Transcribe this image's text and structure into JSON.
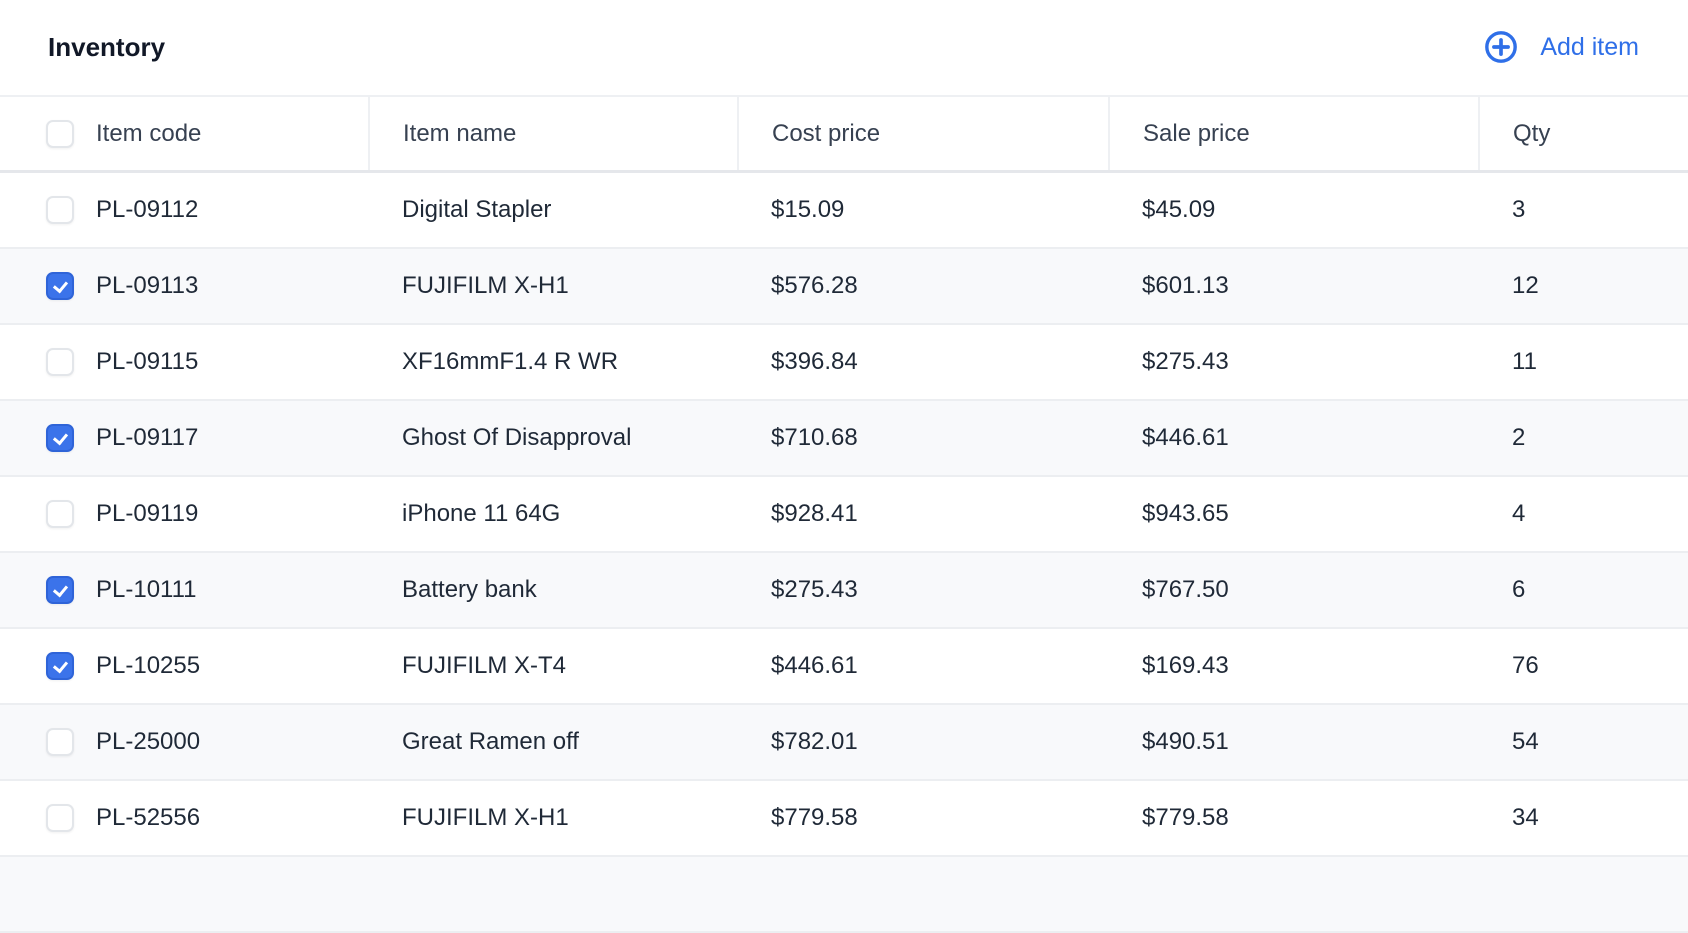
{
  "header": {
    "title": "Inventory",
    "add_label": "Add item",
    "add_icon": "plus-circle-icon",
    "accent": "#2f6fe8"
  },
  "columns": [
    "Item code",
    "Item name",
    "Cost price",
    "Sale price",
    "Qty"
  ],
  "select_all_checked": false,
  "rows": [
    {
      "checked": false,
      "code": "PL-09112",
      "name": "Digital Stapler",
      "cost": "$15.09",
      "sale": "$45.09",
      "qty": "3"
    },
    {
      "checked": true,
      "code": "PL-09113",
      "name": "FUJIFILM X-H1",
      "cost": "$576.28",
      "sale": "$601.13",
      "qty": "12"
    },
    {
      "checked": false,
      "code": "PL-09115",
      "name": "XF16mmF1.4 R WR",
      "cost": "$396.84",
      "sale": "$275.43",
      "qty": "11"
    },
    {
      "checked": true,
      "code": "PL-09117",
      "name": "Ghost Of Disapproval",
      "cost": "$710.68",
      "sale": "$446.61",
      "qty": "2"
    },
    {
      "checked": false,
      "code": "PL-09119",
      "name": "iPhone 11 64G",
      "cost": "$928.41",
      "sale": "$943.65",
      "qty": "4"
    },
    {
      "checked": true,
      "code": "PL-10111",
      "name": "Battery bank",
      "cost": "$275.43",
      "sale": "$767.50",
      "qty": "6"
    },
    {
      "checked": true,
      "code": "PL-10255",
      "name": "FUJIFILM X-T4",
      "cost": "$446.61",
      "sale": "$169.43",
      "qty": "76"
    },
    {
      "checked": false,
      "code": "PL-25000",
      "name": "Great Ramen off",
      "cost": "$782.01",
      "sale": "$490.51",
      "qty": "54"
    },
    {
      "checked": false,
      "code": "PL-52556",
      "name": "FUJIFILM X-H1",
      "cost": "$779.58",
      "sale": "$779.58",
      "qty": "34"
    }
  ]
}
